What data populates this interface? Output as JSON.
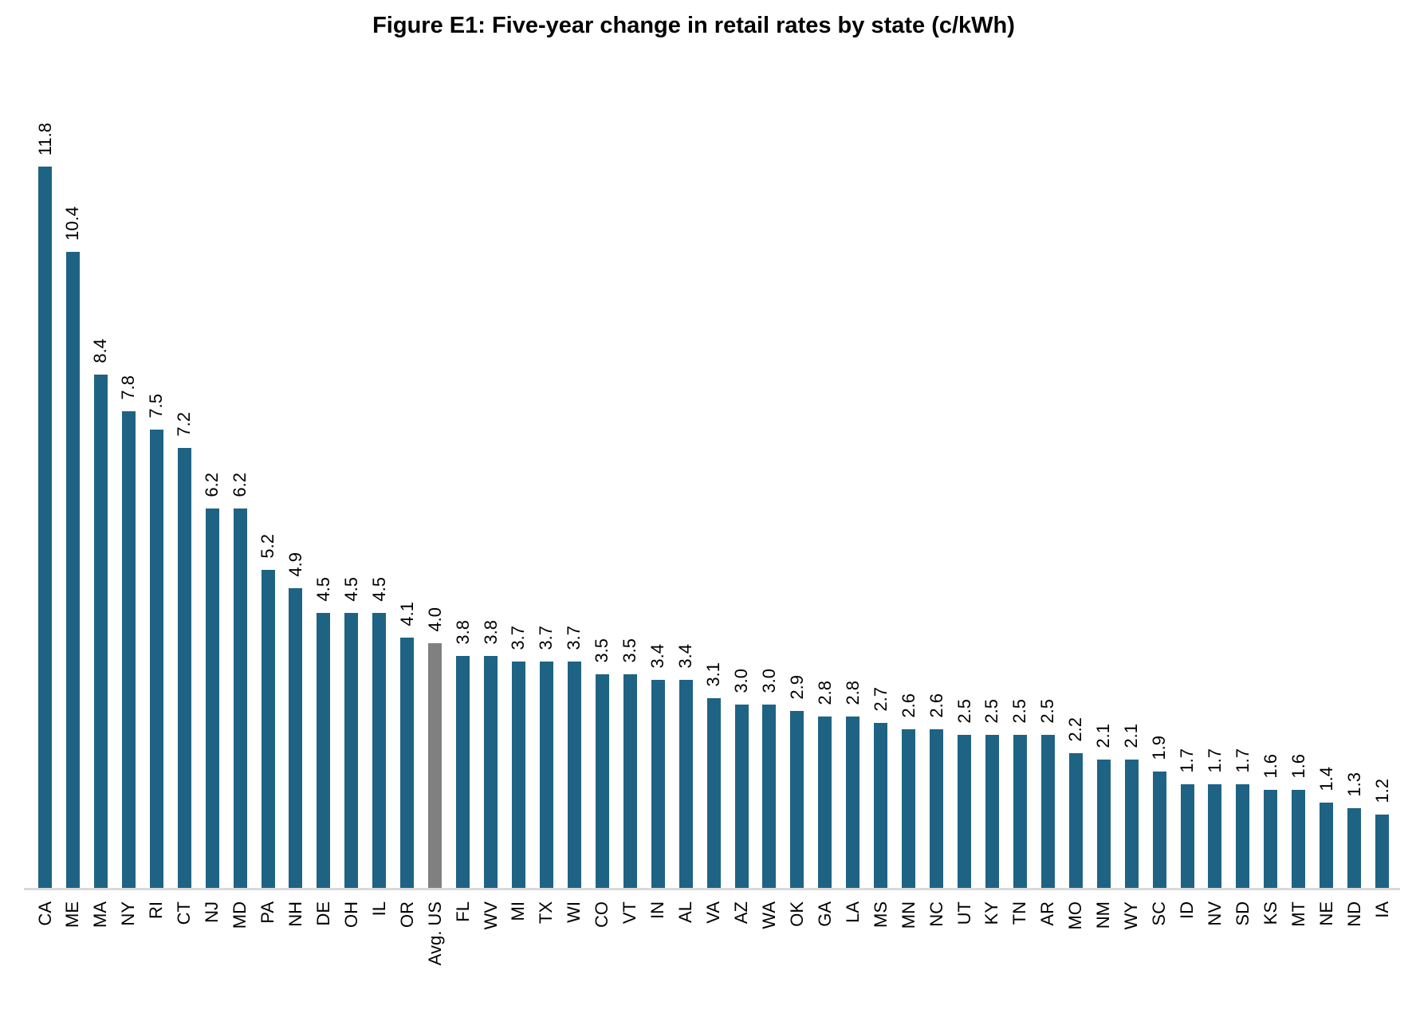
{
  "title": "Figure E1: Five-year change in retail rates by state (c/kWh)",
  "chart_data": {
    "type": "bar",
    "title": "Figure E1: Five-year change in retail rates by state (c/kWh)",
    "xlabel": "",
    "ylabel": "",
    "ylim": [
      0,
      12.4
    ],
    "grid": false,
    "legend": "none",
    "value_labels_rotation_deg": 90,
    "category_labels_rotation_deg": 90,
    "categories": [
      "CA",
      "ME",
      "MA",
      "NY",
      "RI",
      "CT",
      "NJ",
      "MD",
      "PA",
      "NH",
      "DE",
      "OH",
      "IL",
      "OR",
      "Avg. US",
      "FL",
      "WV",
      "MI",
      "TX",
      "WI",
      "CO",
      "VT",
      "IN",
      "AL",
      "VA",
      "AZ",
      "WA",
      "OK",
      "GA",
      "LA",
      "MS",
      "MN",
      "NC",
      "UT",
      "KY",
      "TN",
      "AR",
      "MO",
      "NM",
      "WY",
      "SC",
      "ID",
      "NV",
      "SD",
      "KS",
      "MT",
      "NE",
      "ND",
      "IA"
    ],
    "values": [
      11.8,
      10.4,
      8.4,
      7.8,
      7.5,
      7.2,
      6.2,
      6.2,
      5.2,
      4.9,
      4.5,
      4.5,
      4.5,
      4.1,
      4.0,
      3.8,
      3.8,
      3.7,
      3.7,
      3.7,
      3.5,
      3.5,
      3.4,
      3.4,
      3.1,
      3.0,
      3.0,
      2.9,
      2.8,
      2.8,
      2.7,
      2.6,
      2.6,
      2.5,
      2.5,
      2.5,
      2.5,
      2.2,
      2.1,
      2.1,
      1.9,
      1.7,
      1.7,
      1.7,
      1.6,
      1.6,
      1.4,
      1.3,
      1.2
    ],
    "bar_color": "#1F6384",
    "highlight_category": "Avg. US",
    "highlight_color": "#808080",
    "axis_line_color": "#D9D9D9",
    "text_color": "#000000"
  }
}
